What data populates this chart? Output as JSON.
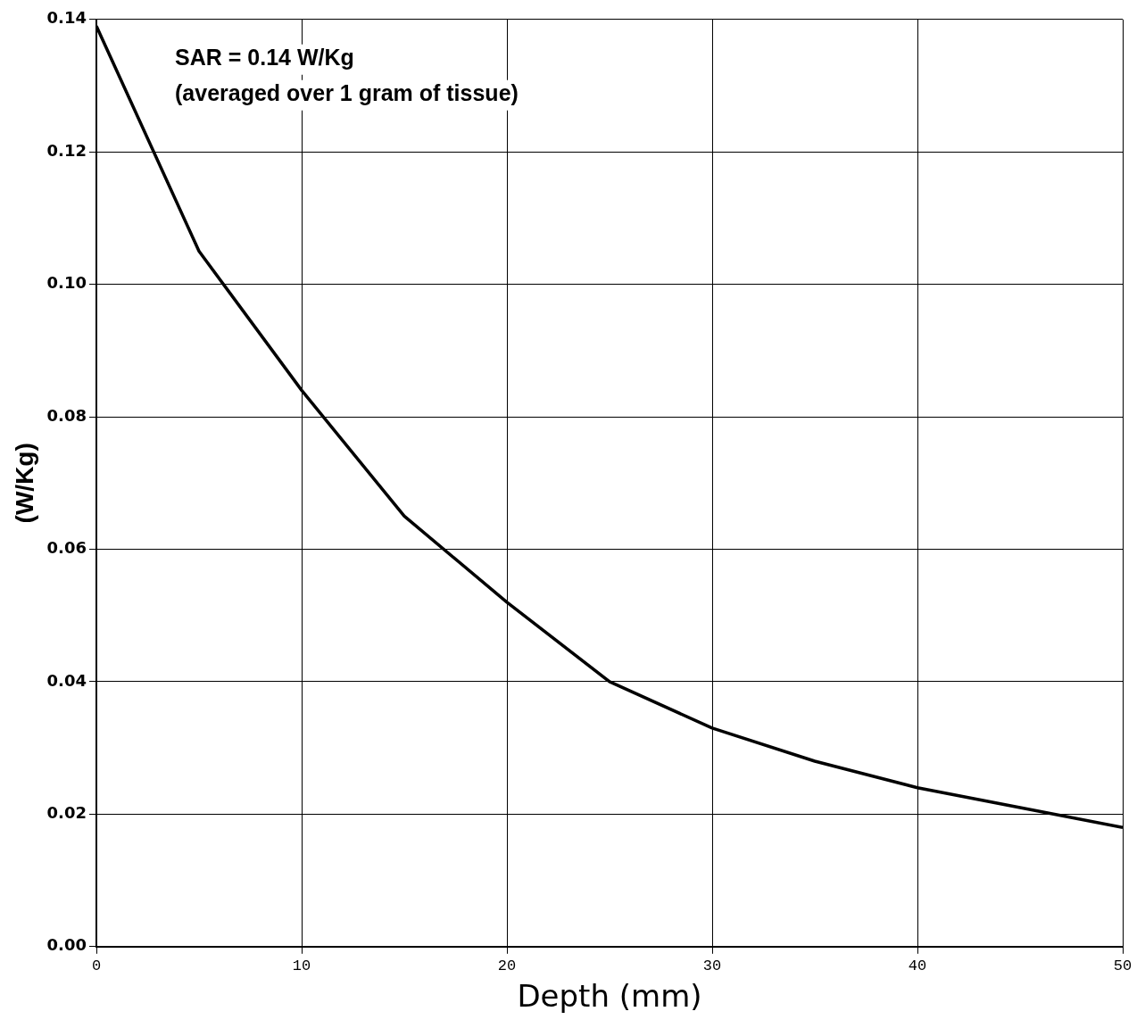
{
  "chart_data": {
    "type": "line",
    "xlabel": "Depth (mm)",
    "ylabel": "(W/Kg)",
    "annotations": [
      "SAR = 0.14 W/Kg",
      "(averaged over 1 gram of tissue)"
    ],
    "x": [
      0,
      5,
      10,
      15,
      20,
      25,
      30,
      35,
      40,
      45,
      50
    ],
    "series": [
      {
        "color": "#000000",
        "values": [
          0.139,
          0.105,
          0.084,
          0.065,
          0.052,
          0.04,
          0.033,
          0.028,
          0.024,
          0.021,
          0.018
        ]
      }
    ],
    "xlim": [
      0,
      50
    ],
    "xticks": [
      0,
      10,
      20,
      30,
      40,
      50
    ],
    "ylim": [
      0,
      0.14
    ],
    "yticks": [
      {
        "value": 0,
        "label": "0.00"
      },
      0.02,
      0.04,
      0.06,
      0.08,
      {
        "value": 0.1,
        "label": "0.10"
      },
      0.12,
      0.14
    ],
    "grid": true,
    "legend": false,
    "marker": "none",
    "line_style": "solid"
  }
}
